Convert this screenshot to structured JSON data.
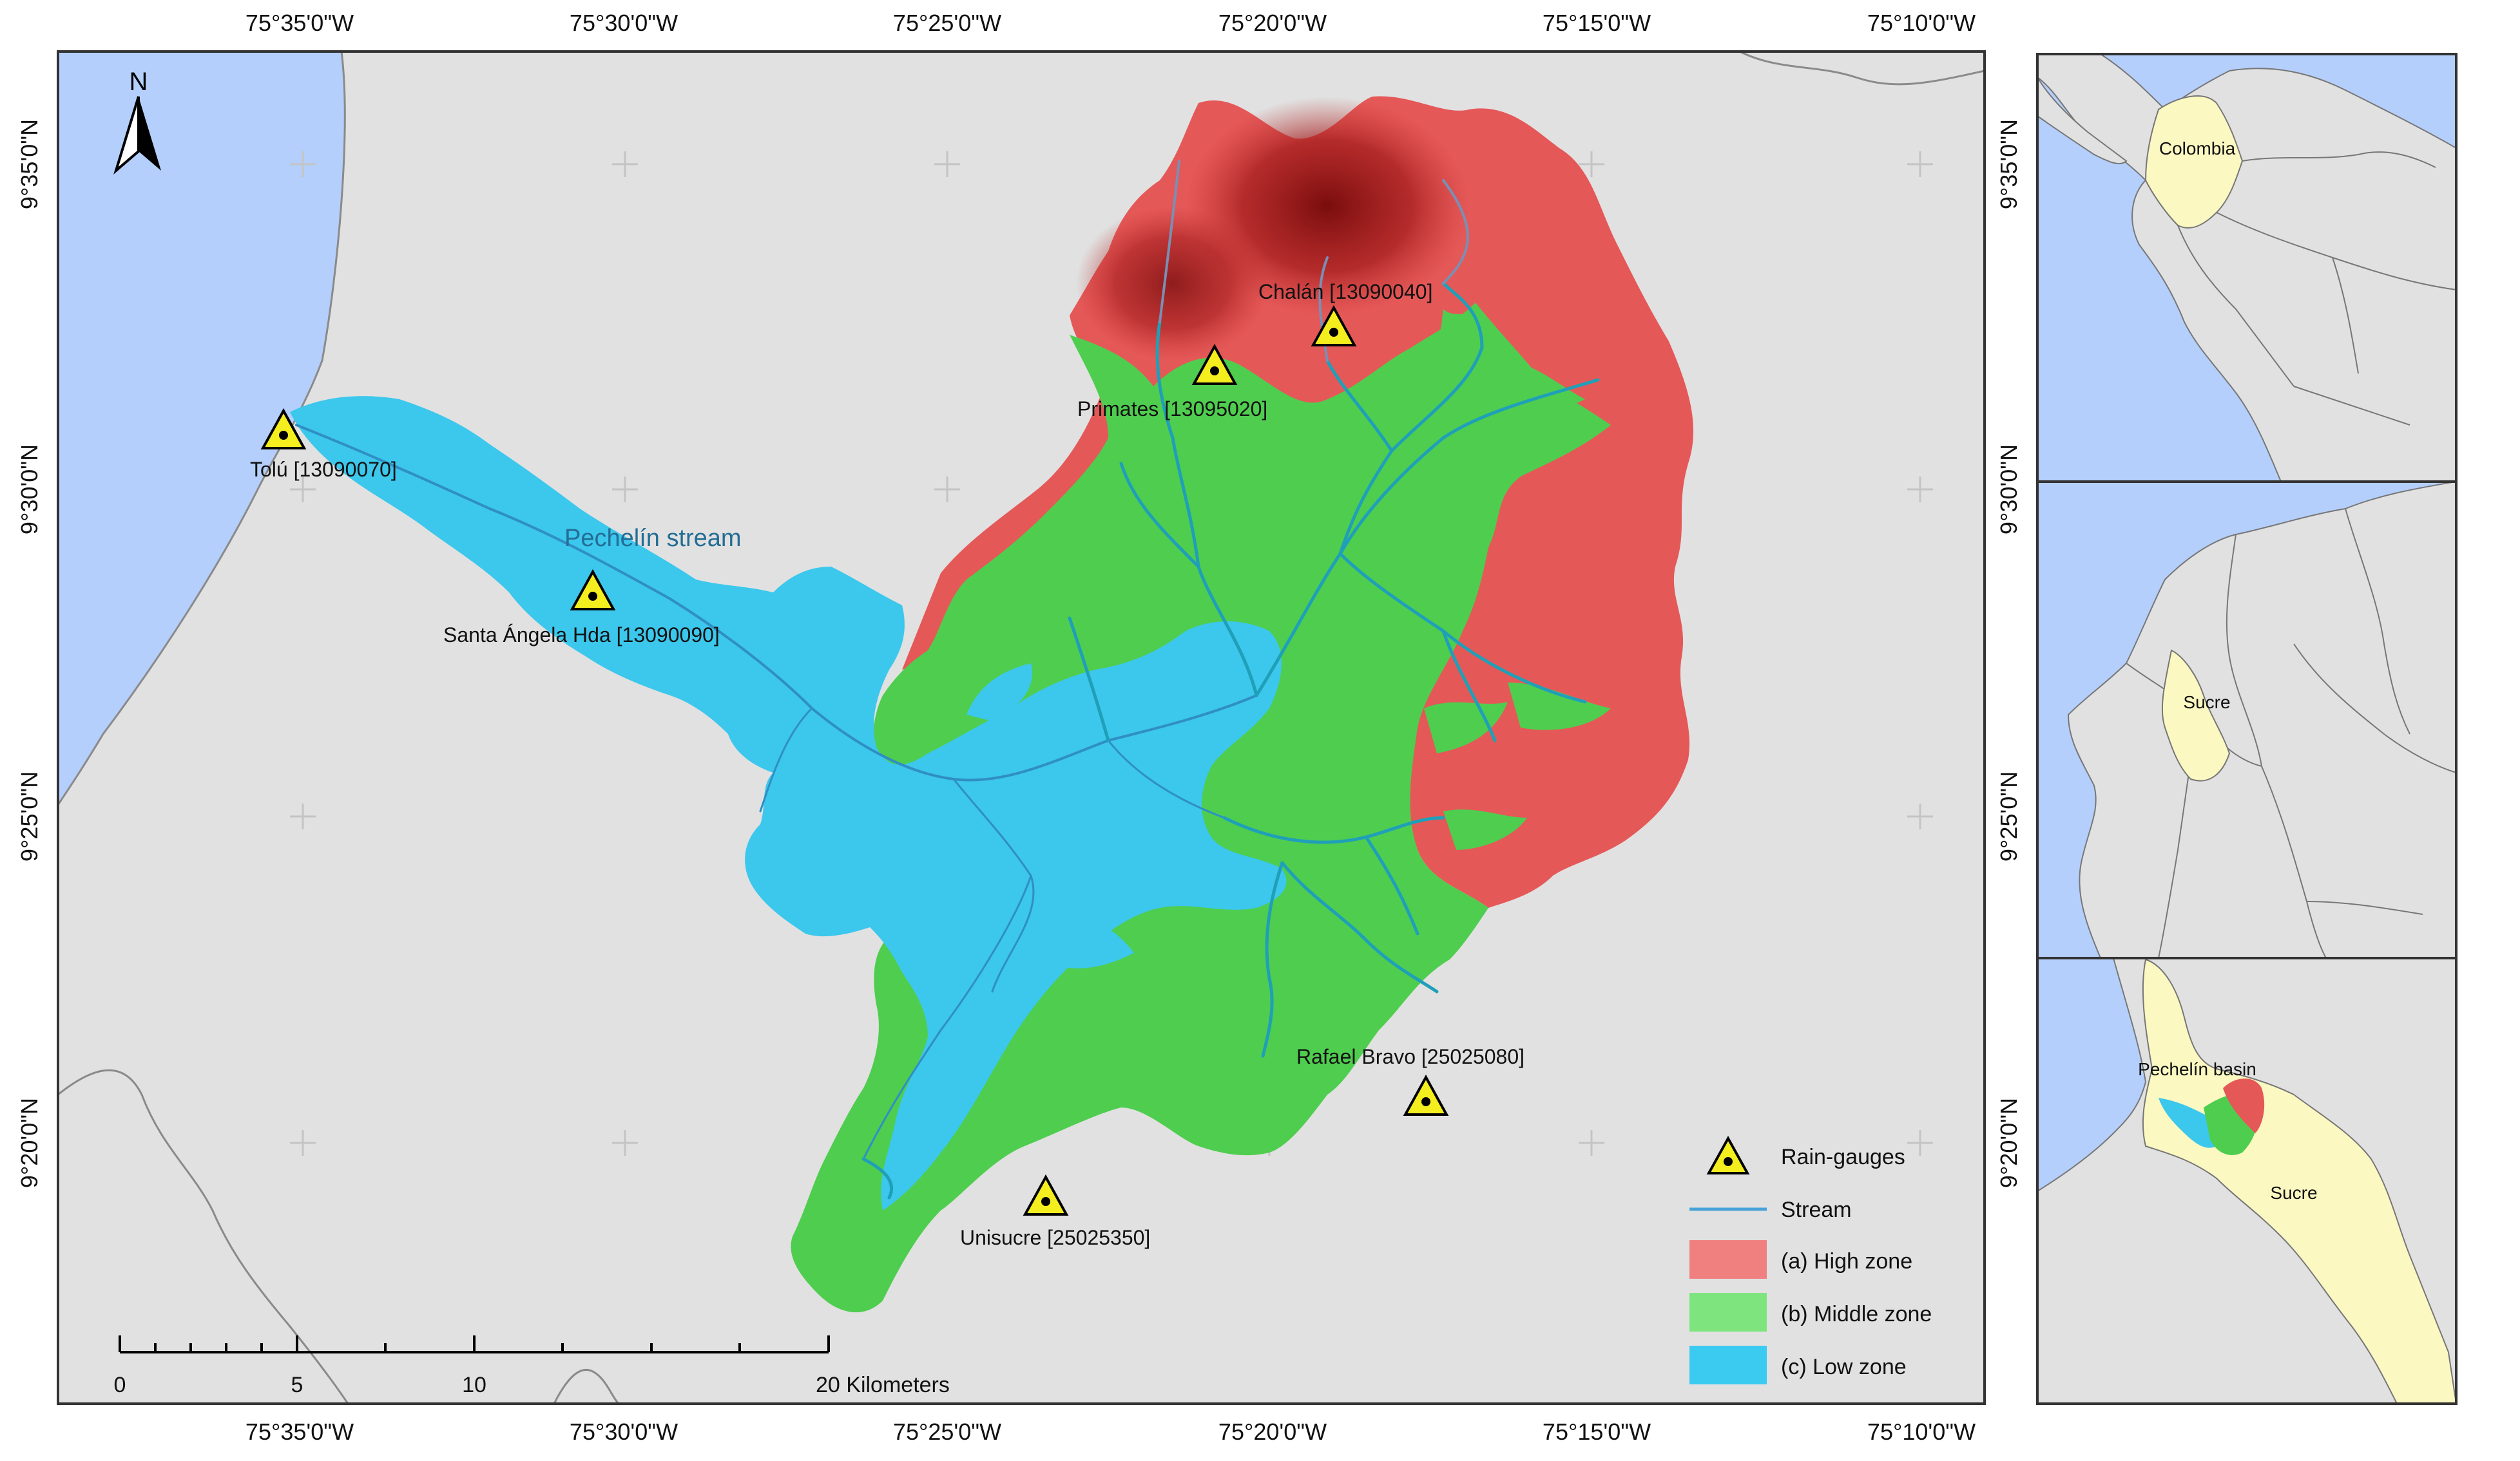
{
  "main_map": {
    "axis_top": [
      "75°35'0\"W",
      "75°30'0\"W",
      "75°25'0\"W",
      "75°20'0\"W",
      "75°15'0\"W",
      "75°10'0\"W"
    ],
    "axis_bottom": [
      "75°35'0\"W",
      "75°30'0\"W",
      "75°25'0\"W",
      "75°20'0\"W",
      "75°15'0\"W",
      "75°10'0\"W"
    ],
    "axis_left": [
      "9°35'0\"N",
      "9°30'0\"N",
      "9°25'0\"N",
      "9°20'0\"N"
    ],
    "axis_right": [
      "9°35'0\"N",
      "9°30'0\"N",
      "9°25'0\"N",
      "9°20'0\"N"
    ],
    "north_label": "N",
    "stream_label": "Pechelín stream",
    "stations": [
      {
        "label": "Tolú [13090070]"
      },
      {
        "label": "Santa Ángela Hda [13090090]"
      },
      {
        "label": "Primates [13095020]"
      },
      {
        "label": "Chalán [13090040]"
      },
      {
        "label": "Rafael Bravo [25025080]"
      },
      {
        "label": "Unisucre [25025350]"
      }
    ],
    "scale_bar": {
      "ticks": [
        "0",
        "5",
        "10",
        "20 Kilometers"
      ]
    },
    "legend": [
      {
        "label": "Rain-gauges",
        "icon": "triangle-icon"
      },
      {
        "label": "Stream",
        "icon": "line-icon",
        "color": "#4aa3d8"
      },
      {
        "label": "(a) High zone",
        "color": "#f08080"
      },
      {
        "label": "(b) Middle zone",
        "color": "#7ee57e"
      },
      {
        "label": "(c) Low zone",
        "color": "#3ccbf0"
      }
    ]
  },
  "insets": [
    {
      "label": "Colombia"
    },
    {
      "label": "Sucre"
    },
    {
      "label": "Pechelín basin",
      "label2": "Sucre"
    }
  ],
  "colors": {
    "sea": "#b4cffb",
    "land": "#e1e1e1",
    "high_zone": "#e55858",
    "middle_zone": "#4fcd4f",
    "low_zone": "#3cc7ec",
    "stream": "#1fa0b8",
    "gauge": "#f5ee1f",
    "highlight_land": "#fbf8c1"
  }
}
